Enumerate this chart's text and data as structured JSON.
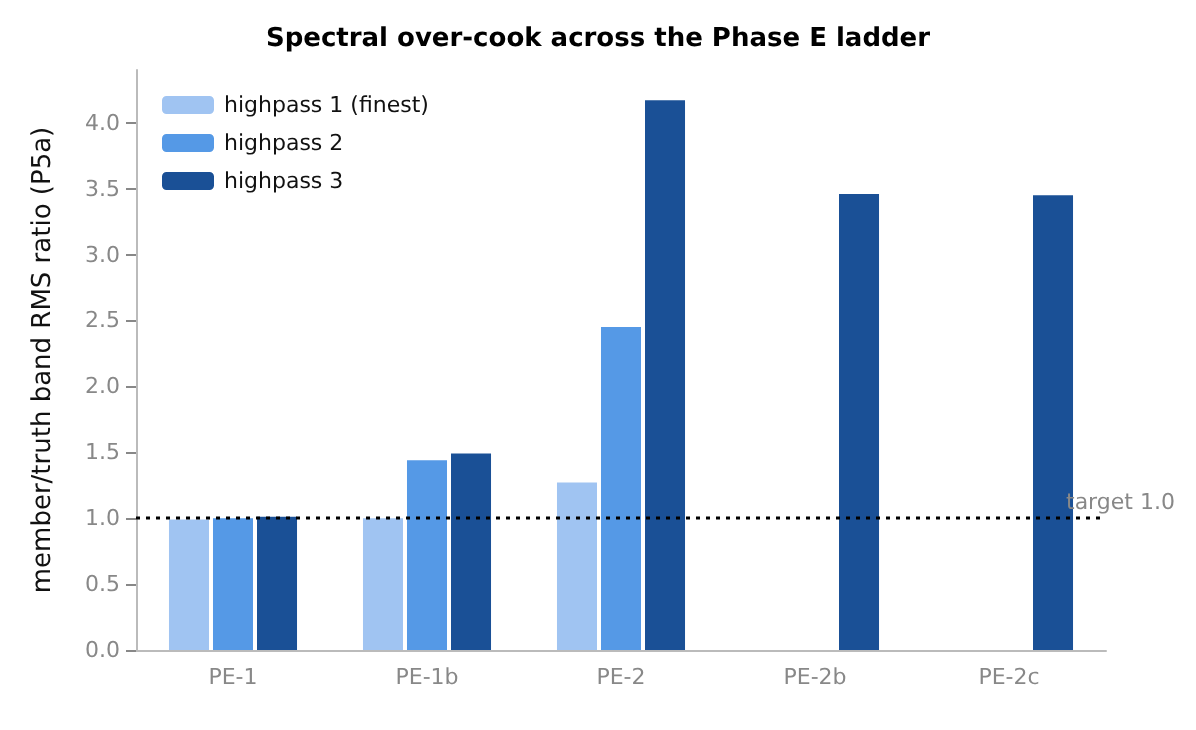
{
  "chart_data": {
    "type": "bar",
    "title": "Spectral over-cook across the Phase E ladder",
    "ylabel": "member/truth band RMS ratio (P5a)",
    "categories": [
      "PE-1",
      "PE-1b",
      "PE-2",
      "PE-2b",
      "PE-2c"
    ],
    "series": [
      {
        "name": "highpass 1 (finest)",
        "color": "#a0c4f2",
        "values": [
          0.99,
          1.0,
          1.27,
          null,
          null
        ]
      },
      {
        "name": "highpass 2",
        "color": "#5599e6",
        "values": [
          1.0,
          1.44,
          2.45,
          null,
          null
        ]
      },
      {
        "name": "highpass 3",
        "color": "#1a5096",
        "values": [
          1.01,
          1.49,
          4.17,
          3.46,
          3.45
        ]
      }
    ],
    "ylim": [
      0,
      4.4
    ],
    "yticks": [
      {
        "value": 0,
        "label": "0.0"
      },
      0.5,
      {
        "value": 1,
        "label": "1.0"
      },
      1.5,
      {
        "value": 2,
        "label": "2.0"
      },
      2.5,
      {
        "value": 3,
        "label": "3.0"
      },
      3.5,
      {
        "value": 4,
        "label": "4.0"
      }
    ],
    "ref_lines": [
      {
        "axis": "y",
        "value": 1.0,
        "label": "target 1.0",
        "color": "#000000",
        "line_style": "dotted"
      }
    ],
    "grid": false,
    "legend": "top left"
  }
}
